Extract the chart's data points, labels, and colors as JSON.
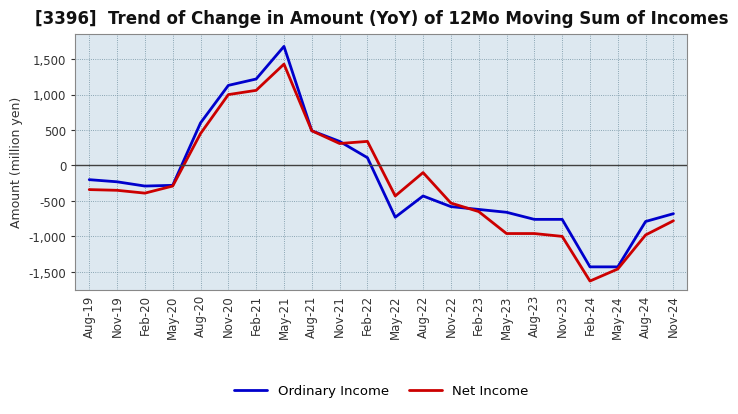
{
  "title": "[3396]  Trend of Change in Amount (YoY) of 12Mo Moving Sum of Incomes",
  "ylabel": "Amount (million yen)",
  "figure_bg": "#ffffff",
  "plot_bg": "#dde8f0",
  "grid_color": "#7090a0",
  "zero_line_color": "#404040",
  "x_labels": [
    "Aug-19",
    "Nov-19",
    "Feb-20",
    "May-20",
    "Aug-20",
    "Nov-20",
    "Feb-21",
    "May-21",
    "Aug-21",
    "Nov-21",
    "Feb-22",
    "May-22",
    "Aug-22",
    "Nov-22",
    "Feb-23",
    "May-23",
    "Aug-23",
    "Nov-23",
    "Feb-24",
    "May-24",
    "Aug-24",
    "Nov-24"
  ],
  "ordinary_income": [
    -200,
    -230,
    -290,
    -280,
    600,
    1130,
    1220,
    1680,
    490,
    340,
    110,
    -730,
    -430,
    -580,
    -620,
    -660,
    -760,
    -760,
    -1430,
    -1430,
    -790,
    -680
  ],
  "net_income": [
    -340,
    -350,
    -390,
    -290,
    450,
    1000,
    1060,
    1430,
    490,
    310,
    340,
    -430,
    -100,
    -530,
    -650,
    -960,
    -960,
    -1000,
    -1630,
    -1460,
    -980,
    -780
  ],
  "ordinary_income_color": "#0000cc",
  "net_income_color": "#cc0000",
  "line_width": 2.0,
  "ylim": [
    -1750,
    1850
  ],
  "yticks": [
    -1500,
    -1000,
    -500,
    0,
    500,
    1000,
    1500
  ],
  "legend_ordinary": "Ordinary Income",
  "legend_net": "Net Income",
  "title_fontsize": 12,
  "axis_fontsize": 9,
  "tick_fontsize": 8.5
}
